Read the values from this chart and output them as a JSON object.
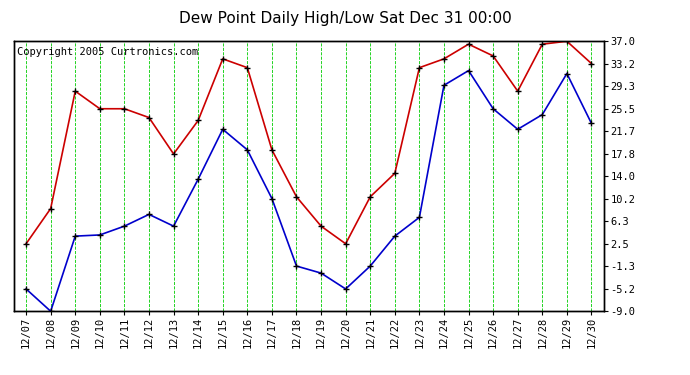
{
  "title": "Dew Point Daily High/Low Sat Dec 31 00:00",
  "copyright": "Copyright 2005 Curtronics.com",
  "x_labels": [
    "12/07",
    "12/08",
    "12/09",
    "12/10",
    "12/11",
    "12/12",
    "12/13",
    "12/14",
    "12/15",
    "12/16",
    "12/17",
    "12/18",
    "12/19",
    "12/20",
    "12/21",
    "12/22",
    "12/23",
    "12/24",
    "12/25",
    "12/26",
    "12/27",
    "12/28",
    "12/29",
    "12/30"
  ],
  "high_values": [
    2.5,
    8.5,
    28.5,
    25.5,
    25.5,
    24.0,
    17.8,
    23.5,
    34.0,
    32.5,
    18.5,
    10.5,
    5.5,
    2.5,
    10.5,
    14.5,
    32.5,
    34.0,
    36.5,
    34.5,
    28.5,
    36.5,
    37.0,
    33.2
  ],
  "low_values": [
    -5.2,
    -9.0,
    3.8,
    4.0,
    5.5,
    7.5,
    5.5,
    13.5,
    22.0,
    18.5,
    10.2,
    -1.3,
    -2.5,
    -5.2,
    -1.3,
    3.8,
    7.0,
    29.5,
    32.0,
    25.5,
    22.0,
    24.5,
    31.5,
    23.0
  ],
  "high_color": "#cc0000",
  "low_color": "#0000cc",
  "marker_color": "#000000",
  "grid_color": "#00cc00",
  "bg_color": "#ffffff",
  "plot_bg_color": "#ffffff",
  "y_ticks": [
    37.0,
    33.2,
    29.3,
    25.5,
    21.7,
    17.8,
    14.0,
    10.2,
    6.3,
    2.5,
    -1.3,
    -5.2,
    -9.0
  ],
  "y_min": -9.0,
  "y_max": 37.0,
  "title_fontsize": 11,
  "copyright_fontsize": 7.5,
  "tick_fontsize": 7.5,
  "figwidth": 6.9,
  "figheight": 3.75,
  "dpi": 100
}
